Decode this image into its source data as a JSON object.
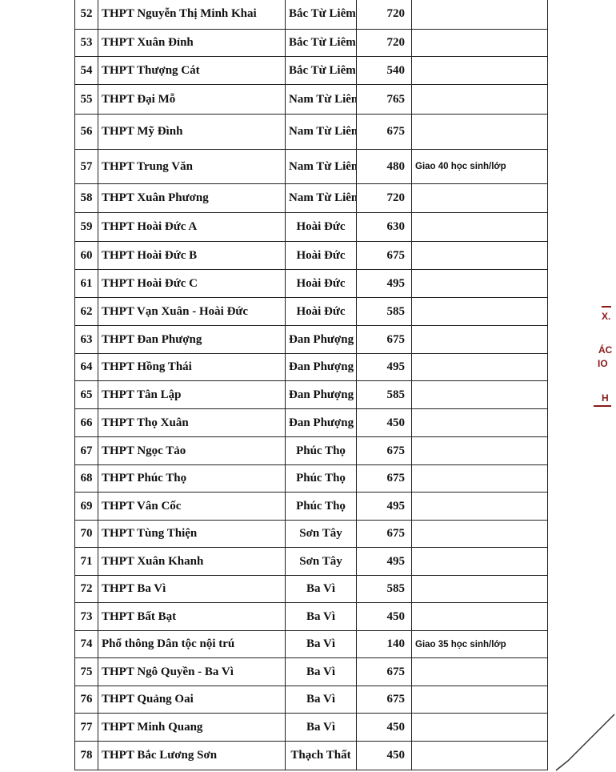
{
  "rows": [
    {
      "no": "52",
      "name": "THPT Nguyễn Thị Minh Khai",
      "district": "Bắc Từ Liêm",
      "quota": "720",
      "note": ""
    },
    {
      "no": "53",
      "name": "THPT Xuân Đỉnh",
      "district": "Bắc Từ Liêm",
      "quota": "720",
      "note": ""
    },
    {
      "no": "54",
      "name": "THPT Thượng Cát",
      "district": "Bắc Từ Liêm",
      "quota": "540",
      "note": ""
    },
    {
      "no": "55",
      "name": "THPT Đại Mỗ",
      "district": "Nam Từ Liêm",
      "quota": "765",
      "note": ""
    },
    {
      "no": "56",
      "name": "THPT Mỹ Đình",
      "district": "Nam Từ Liêm",
      "quota": "675",
      "note": ""
    },
    {
      "no": "57",
      "name": "THPT Trung Văn",
      "district": "Nam Từ Liêm",
      "quota": "480",
      "note": "Giao 40 học sinh/lớp"
    },
    {
      "no": "58",
      "name": "THPT Xuân Phương",
      "district": "Nam Từ Liêm",
      "quota": "720",
      "note": ""
    },
    {
      "no": "59",
      "name": "THPT Hoài Đức A",
      "district": "Hoài Đức",
      "quota": "630",
      "note": ""
    },
    {
      "no": "60",
      "name": "THPT Hoài Đức B",
      "district": "Hoài Đức",
      "quota": "675",
      "note": ""
    },
    {
      "no": "61",
      "name": "THPT Hoài Đức C",
      "district": "Hoài Đức",
      "quota": "495",
      "note": ""
    },
    {
      "no": "62",
      "name": "THPT Vạn Xuân - Hoài Đức",
      "district": "Hoài Đức",
      "quota": "585",
      "note": ""
    },
    {
      "no": "63",
      "name": "THPT Đan Phượng",
      "district": "Đan Phượng",
      "quota": "675",
      "note": ""
    },
    {
      "no": "64",
      "name": "THPT Hồng Thái",
      "district": "Đan Phượng",
      "quota": "495",
      "note": ""
    },
    {
      "no": "65",
      "name": "THPT Tân Lập",
      "district": "Đan Phượng",
      "quota": "585",
      "note": ""
    },
    {
      "no": "66",
      "name": "THPT Thọ Xuân",
      "district": "Đan Phượng",
      "quota": "450",
      "note": ""
    },
    {
      "no": "67",
      "name": "THPT Ngọc Tảo",
      "district": "Phúc Thọ",
      "quota": "675",
      "note": ""
    },
    {
      "no": "68",
      "name": "THPT Phúc Thọ",
      "district": "Phúc Thọ",
      "quota": "675",
      "note": ""
    },
    {
      "no": "69",
      "name": "THPT Vân Cốc",
      "district": "Phúc Thọ",
      "quota": "495",
      "note": ""
    },
    {
      "no": "70",
      "name": "THPT Tùng Thiện",
      "district": "Sơn Tây",
      "quota": "675",
      "note": ""
    },
    {
      "no": "71",
      "name": "THPT Xuân Khanh",
      "district": "Sơn Tây",
      "quota": "495",
      "note": ""
    },
    {
      "no": "72",
      "name": "THPT Ba Vì",
      "district": "Ba Vì",
      "quota": "585",
      "note": ""
    },
    {
      "no": "73",
      "name": "THPT Bất Bạt",
      "district": "Ba Vì",
      "quota": "450",
      "note": ""
    },
    {
      "no": "74",
      "name": "Phổ thông Dân tộc nội trú",
      "district": "Ba Vì",
      "quota": "140",
      "note": "Giao 35 học sinh/lớp"
    },
    {
      "no": "75",
      "name": "THPT Ngô Quyền - Ba Vì",
      "district": "Ba Vì",
      "quota": "675",
      "note": ""
    },
    {
      "no": "76",
      "name": "THPT Quảng Oai",
      "district": "Ba Vì",
      "quota": "675",
      "note": ""
    },
    {
      "no": "77",
      "name": "THPT Minh Quang",
      "district": "Ba Vì",
      "quota": "450",
      "note": ""
    },
    {
      "no": "78",
      "name": "THPT Bắc Lương Sơn",
      "district": "Thạch Thất",
      "quota": "450",
      "note": ""
    }
  ],
  "stamp": {
    "fragments": [
      "X.",
      "ÁC",
      "IO",
      "H"
    ],
    "color": "#8b1a1a"
  }
}
